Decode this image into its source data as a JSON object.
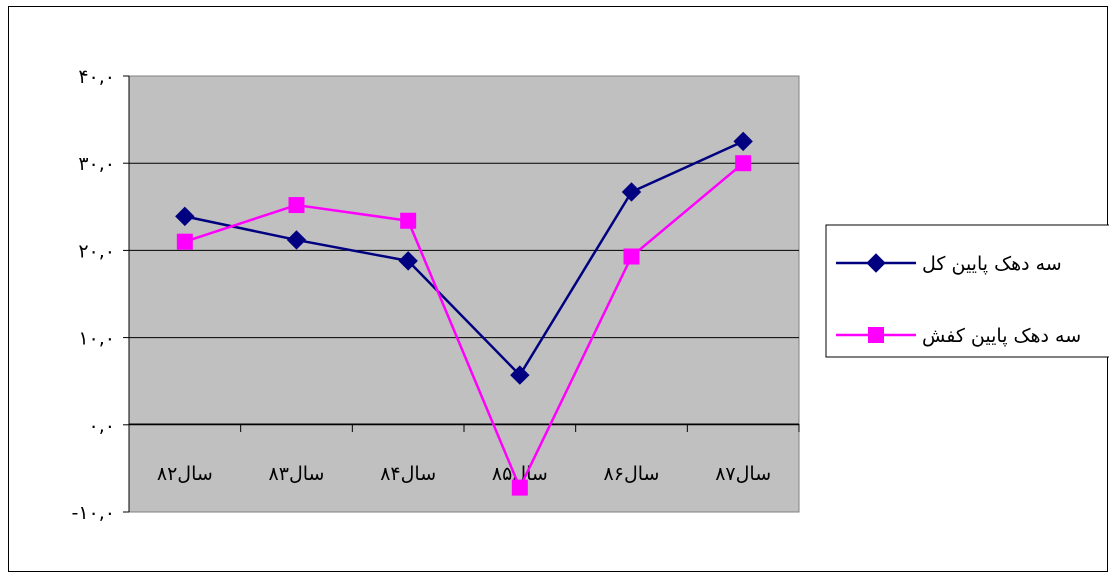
{
  "chart_data": {
    "type": "line",
    "categories": [
      "سال۸۲",
      "سال۸۳",
      "سال۸۴",
      "سال۸۵",
      "سال۸۶",
      "سال۸۷"
    ],
    "y_tick_labels": [
      "-۱۰,۰",
      "۰,۰",
      "۱۰,۰",
      "۲۰,۰",
      "۳۰,۰",
      "۴۰,۰"
    ],
    "y_ticks": [
      -10,
      0,
      10,
      20,
      30,
      40
    ],
    "ylim": [
      -10,
      40
    ],
    "grid": true,
    "legend_position": "right",
    "plot_background": "#c0c0c0",
    "series": [
      {
        "name": "سه دهک پایین کل",
        "values": [
          23.9,
          21.2,
          18.8,
          5.7,
          26.7,
          32.5
        ],
        "color": "#000080",
        "marker": "diamond"
      },
      {
        "name": "سه دهک پایین کفش",
        "values": [
          21.0,
          25.2,
          23.4,
          -7.2,
          19.3,
          30.0
        ],
        "color": "#ff00ff",
        "marker": "square"
      }
    ]
  }
}
